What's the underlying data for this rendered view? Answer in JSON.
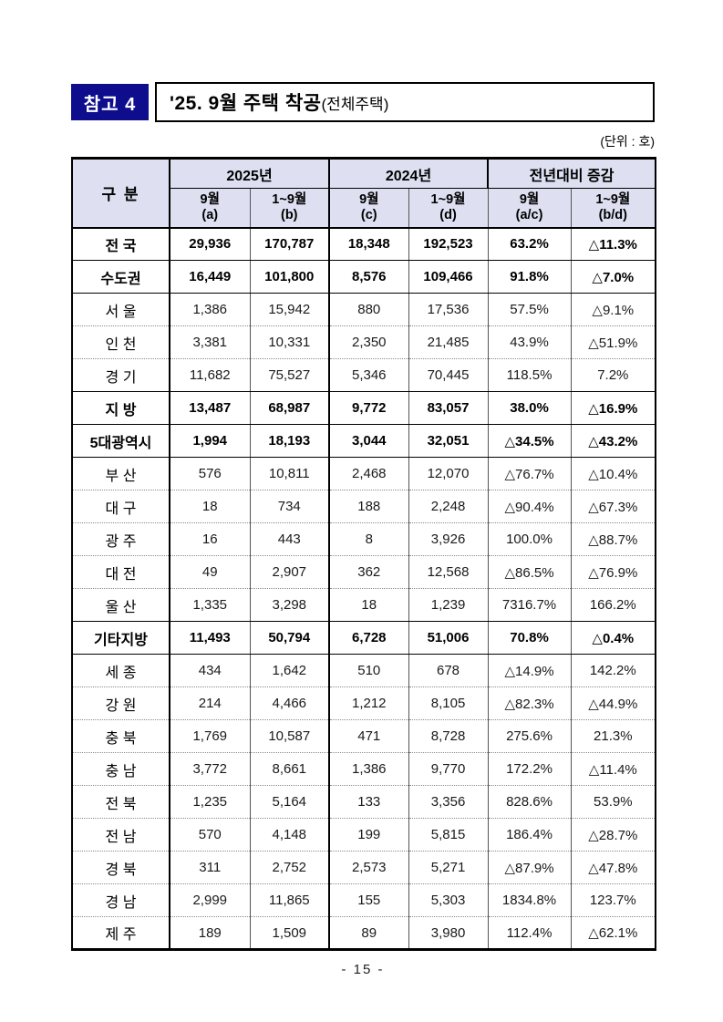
{
  "page": {
    "badge": "참고 4",
    "title": "'25. 9월 주택 착공",
    "title_suffix": "(전체주택)",
    "unit_note": "(단위 : 호)",
    "page_number": "- 15 -"
  },
  "colors": {
    "badge_bg": "#0d0d8e",
    "header_bg": "#dee0f2"
  },
  "table": {
    "header": {
      "category": "구  분",
      "groups": [
        {
          "label": "2025년",
          "cols": [
            {
              "line1": "9월",
              "line2": "(a)"
            },
            {
              "line1": "1~9월",
              "line2": "(b)"
            }
          ]
        },
        {
          "label": "2024년",
          "cols": [
            {
              "line1": "9월",
              "line2": "(c)"
            },
            {
              "line1": "1~9월",
              "line2": "(d)"
            }
          ]
        },
        {
          "label": "전년대비 증감",
          "cols": [
            {
              "line1": "9월",
              "line2": "(a/c)"
            },
            {
              "line1": "1~9월",
              "line2": "(b/d)"
            }
          ]
        }
      ]
    },
    "rows": [
      {
        "label": "전 국",
        "bold": true,
        "sep": "solid",
        "values": [
          "29,936",
          "170,787",
          "18,348",
          "192,523",
          "63.2%",
          "△11.3%"
        ]
      },
      {
        "label": "수도권",
        "bold": true,
        "sep": "solid",
        "values": [
          "16,449",
          "101,800",
          "8,576",
          "109,466",
          "91.8%",
          "△7.0%"
        ]
      },
      {
        "label": "서 울",
        "bold": false,
        "sep": "dotted",
        "values": [
          "1,386",
          "15,942",
          "880",
          "17,536",
          "57.5%",
          "△9.1%"
        ]
      },
      {
        "label": "인 천",
        "bold": false,
        "sep": "dotted",
        "values": [
          "3,381",
          "10,331",
          "2,350",
          "21,485",
          "43.9%",
          "△51.9%"
        ]
      },
      {
        "label": "경 기",
        "bold": false,
        "sep": "solid",
        "values": [
          "11,682",
          "75,527",
          "5,346",
          "70,445",
          "118.5%",
          "7.2%"
        ]
      },
      {
        "label": "지  방",
        "bold": true,
        "sep": "solid",
        "values": [
          "13,487",
          "68,987",
          "9,772",
          "83,057",
          "38.0%",
          "△16.9%"
        ]
      },
      {
        "label": "5대광역시",
        "bold": true,
        "sep": "solid",
        "values": [
          "1,994",
          "18,193",
          "3,044",
          "32,051",
          "△34.5%",
          "△43.2%"
        ]
      },
      {
        "label": "부 산",
        "bold": false,
        "sep": "dotted",
        "values": [
          "576",
          "10,811",
          "2,468",
          "12,070",
          "△76.7%",
          "△10.4%"
        ]
      },
      {
        "label": "대 구",
        "bold": false,
        "sep": "dotted",
        "values": [
          "18",
          "734",
          "188",
          "2,248",
          "△90.4%",
          "△67.3%"
        ]
      },
      {
        "label": "광 주",
        "bold": false,
        "sep": "dotted",
        "values": [
          "16",
          "443",
          "8",
          "3,926",
          "100.0%",
          "△88.7%"
        ]
      },
      {
        "label": "대 전",
        "bold": false,
        "sep": "dotted",
        "values": [
          "49",
          "2,907",
          "362",
          "12,568",
          "△86.5%",
          "△76.9%"
        ]
      },
      {
        "label": "울 산",
        "bold": false,
        "sep": "solid",
        "values": [
          "1,335",
          "3,298",
          "18",
          "1,239",
          "7316.7%",
          "166.2%"
        ]
      },
      {
        "label": "기타지방",
        "bold": true,
        "sep": "solid",
        "values": [
          "11,493",
          "50,794",
          "6,728",
          "51,006",
          "70.8%",
          "△0.4%"
        ]
      },
      {
        "label": "세 종",
        "bold": false,
        "sep": "dotted",
        "values": [
          "434",
          "1,642",
          "510",
          "678",
          "△14.9%",
          "142.2%"
        ]
      },
      {
        "label": "강 원",
        "bold": false,
        "sep": "dotted",
        "values": [
          "214",
          "4,466",
          "1,212",
          "8,105",
          "△82.3%",
          "△44.9%"
        ]
      },
      {
        "label": "충 북",
        "bold": false,
        "sep": "dotted",
        "values": [
          "1,769",
          "10,587",
          "471",
          "8,728",
          "275.6%",
          "21.3%"
        ]
      },
      {
        "label": "충 남",
        "bold": false,
        "sep": "dotted",
        "values": [
          "3,772",
          "8,661",
          "1,386",
          "9,770",
          "172.2%",
          "△11.4%"
        ]
      },
      {
        "label": "전 북",
        "bold": false,
        "sep": "dotted",
        "values": [
          "1,235",
          "5,164",
          "133",
          "3,356",
          "828.6%",
          "53.9%"
        ]
      },
      {
        "label": "전 남",
        "bold": false,
        "sep": "dotted",
        "values": [
          "570",
          "4,148",
          "199",
          "5,815",
          "186.4%",
          "△28.7%"
        ]
      },
      {
        "label": "경 북",
        "bold": false,
        "sep": "dotted",
        "values": [
          "311",
          "2,752",
          "2,573",
          "5,271",
          "△87.9%",
          "△47.8%"
        ]
      },
      {
        "label": "경 남",
        "bold": false,
        "sep": "dotted",
        "values": [
          "2,999",
          "11,865",
          "155",
          "5,303",
          "1834.8%",
          "123.7%"
        ]
      },
      {
        "label": "제 주",
        "bold": false,
        "sep": "none",
        "values": [
          "189",
          "1,509",
          "89",
          "3,980",
          "112.4%",
          "△62.1%"
        ]
      }
    ]
  }
}
